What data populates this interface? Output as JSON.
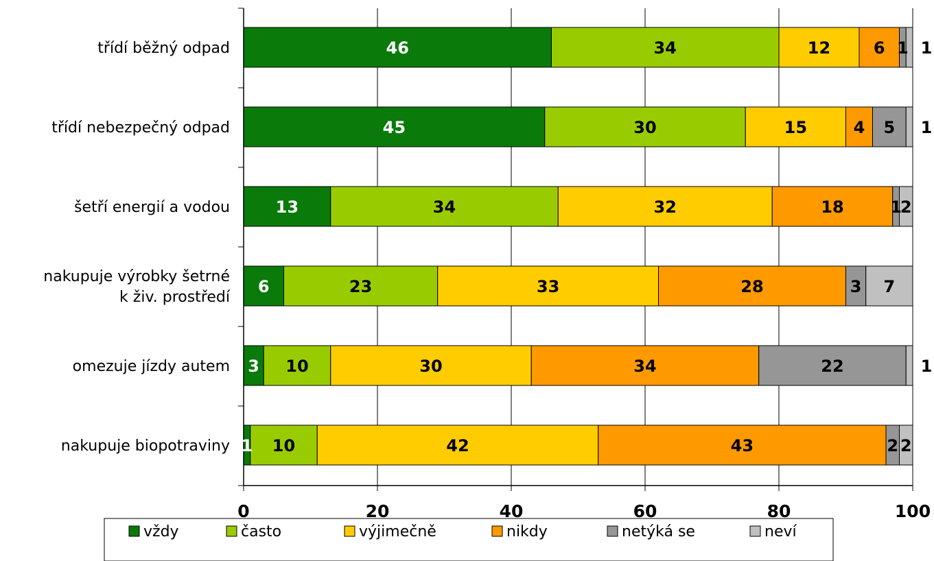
{
  "chart_data": {
    "type": "bar",
    "orientation": "horizontal",
    "stacked": true,
    "title": "",
    "xlabel": "",
    "ylabel": "",
    "xlim": [
      0,
      100
    ],
    "x_ticks": [
      "0",
      "20",
      "40",
      "60",
      "80",
      "100"
    ],
    "grid": true,
    "legend_position": "bottom",
    "categories": [
      [
        "třídí běžný odpad"
      ],
      [
        "třídí nebezpečný odpad"
      ],
      [
        "šetří energií a vodou"
      ],
      [
        "nakupuje výrobky šetrné",
        "k živ. prostředí"
      ],
      [
        "omezuje jízdy autem"
      ],
      [
        "nakupuje biopotraviny"
      ]
    ],
    "series": [
      {
        "name": "vždy",
        "color": "#0a7a0a",
        "label_color": "#ffffff",
        "values": [
          46,
          45,
          13,
          6,
          3,
          1
        ]
      },
      {
        "name": "často",
        "color": "#99cc00",
        "label_color": "#000000",
        "values": [
          34,
          30,
          34,
          23,
          10,
          10
        ]
      },
      {
        "name": "výjimečně",
        "color": "#ffcc00",
        "label_color": "#000000",
        "values": [
          12,
          15,
          32,
          33,
          30,
          42
        ]
      },
      {
        "name": "nikdy",
        "color": "#ff9900",
        "label_color": "#000000",
        "values": [
          6,
          4,
          18,
          28,
          34,
          43
        ]
      },
      {
        "name": "netýká se",
        "color": "#969696",
        "label_color": "#000000",
        "values": [
          1,
          5,
          1,
          3,
          22,
          2
        ]
      },
      {
        "name": "neví",
        "color": "#c0c0c0",
        "label_color": "#000000",
        "values": [
          1,
          1,
          2,
          7,
          1,
          2
        ]
      }
    ],
    "data_labels": [
      [
        "46",
        "34",
        "12",
        "6",
        "1",
        "1"
      ],
      [
        "45",
        "30",
        "15",
        "4",
        "5",
        "1"
      ],
      [
        "13",
        "34",
        "32",
        "18",
        "1",
        "2"
      ],
      [
        "6",
        "23",
        "33",
        "28",
        "3",
        "7"
      ],
      [
        "3",
        "10",
        "30",
        "34",
        "22",
        "1"
      ],
      [
        "1",
        "10",
        "42",
        "43",
        "2",
        "2"
      ]
    ]
  }
}
